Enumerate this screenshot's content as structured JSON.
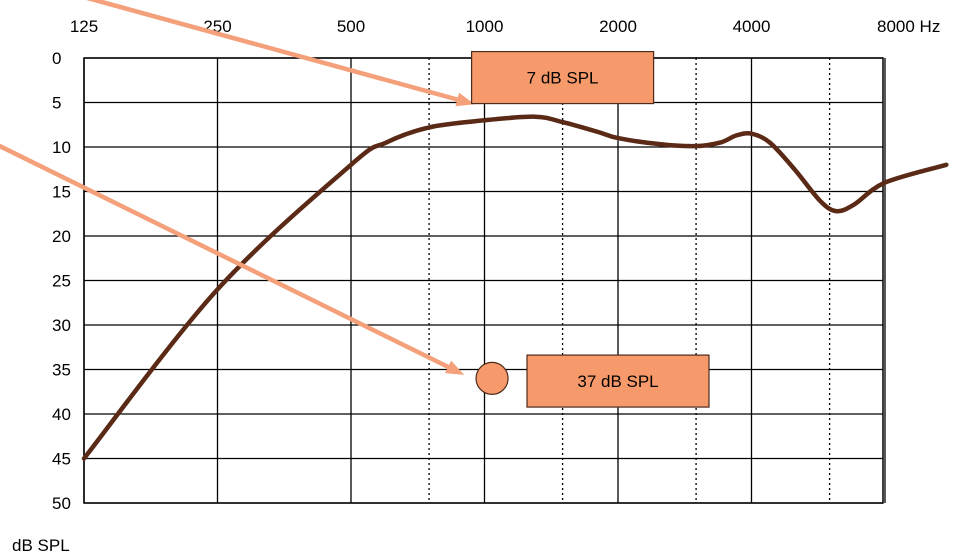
{
  "chart_data": {
    "type": "line",
    "x_scale": "log2",
    "x_unit": "Hz",
    "y_unit": "dB SPL",
    "x_ticks": [
      125,
      250,
      500,
      1000,
      2000,
      4000,
      8000
    ],
    "x_tick_labels": [
      "125",
      "250",
      "500",
      "1000",
      "2000",
      "4000",
      "8000 Hz"
    ],
    "x_minor_gridlines": [
      750,
      1500,
      3000,
      6000
    ],
    "y_ticks": [
      0,
      5,
      10,
      15,
      20,
      25,
      30,
      35,
      40,
      45,
      50
    ],
    "y_tick_labels": [
      "0",
      "5",
      "10",
      "15",
      "20",
      "25",
      "30",
      "35",
      "40",
      "45",
      "50"
    ],
    "ylim": [
      0,
      50
    ],
    "y_inverted": true,
    "xlim": [
      125,
      11300
    ],
    "grid": true,
    "series": [
      {
        "color": "#5a2a16",
        "points": [
          [
            125,
            45
          ],
          [
            250,
            26
          ],
          [
            500,
            12
          ],
          [
            600,
            9.5
          ],
          [
            750,
            7.8
          ],
          [
            1000,
            7
          ],
          [
            1300,
            6.6
          ],
          [
            1500,
            7.2
          ],
          [
            1800,
            8.3
          ],
          [
            2000,
            9
          ],
          [
            2500,
            9.7
          ],
          [
            3000,
            9.9
          ],
          [
            3400,
            9.5
          ],
          [
            3700,
            8.7
          ],
          [
            4000,
            8.5
          ],
          [
            4400,
            9.5
          ],
          [
            5000,
            12.5
          ],
          [
            5700,
            16
          ],
          [
            6200,
            17.2
          ],
          [
            6800,
            16.5
          ],
          [
            8000,
            14
          ],
          [
            11000,
            12
          ]
        ]
      }
    ],
    "marker": {
      "x": 1040,
      "y": 36,
      "color": "#f79a6b"
    },
    "callouts": [
      {
        "text": "7 dB SPL",
        "x": 1500,
        "y": 2.2
      },
      {
        "text": "37 dB SPL",
        "x": 2000,
        "y": 36.3
      }
    ],
    "arrows": [
      {
        "from_x": 87,
        "from_y": -9,
        "to_x": 950,
        "to_y": 5.2,
        "color": "#f4a07a"
      },
      {
        "from_x": 80,
        "from_y": 9.8,
        "to_x": 900,
        "to_y": 35.6,
        "color": "#f4a07a"
      }
    ],
    "y_unit_label": "dB SPL",
    "box_fill": "#f79a6b",
    "box_stroke": "#4d2a1a"
  }
}
